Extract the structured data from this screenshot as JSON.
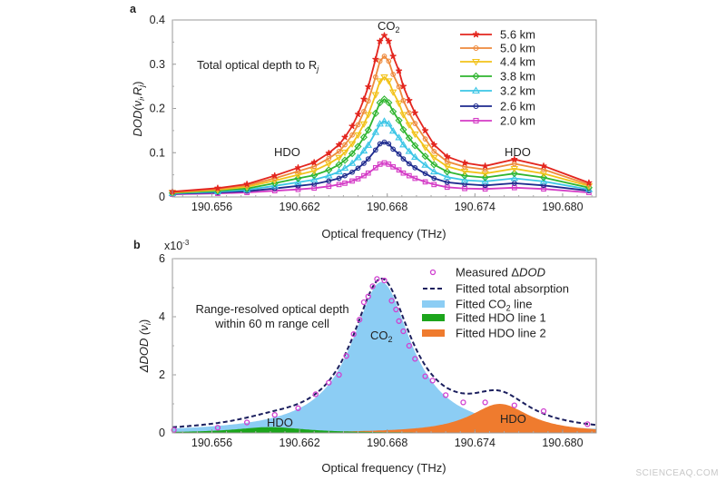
{
  "watermark": "SCIENCEAQ.COM",
  "chart_data": [
    {
      "panel": "a",
      "type": "line",
      "annotation": "Total optical depth to R",
      "annotation_sub": "j",
      "peak_labels": {
        "co2": "CO",
        "co2_sub": "2",
        "hdo_left": "HDO",
        "hdo_right": "HDO"
      },
      "xlabel": "Optical frequency (THz)",
      "ylabel": "DOD(ν",
      "ylabel_sub": "i",
      "ylabel_mid": ",R",
      "ylabel_sub2": "j",
      "ylabel_end": ")",
      "xlim": [
        190.6533,
        190.6823
      ],
      "ylim": [
        0,
        0.4
      ],
      "xticks": [
        "190.656",
        "190.662",
        "190.668",
        "190.674",
        "190.680"
      ],
      "yticks": [
        "0",
        "0.1",
        "0.2",
        "0.3",
        "0.4"
      ],
      "legend_position": "top-right",
      "grid": false,
      "x": [
        190.6533,
        190.6564,
        190.6584,
        190.6603,
        190.6619,
        190.663,
        190.664,
        190.6647,
        190.6651,
        190.6656,
        190.666,
        190.6664,
        190.6667,
        190.6672,
        190.6675,
        190.6678,
        190.6681,
        190.6684,
        190.6688,
        190.6691,
        190.6695,
        190.6699,
        190.6706,
        190.6712,
        190.6721,
        190.6733,
        190.6747,
        190.6767,
        190.6787,
        190.6818
      ],
      "series": [
        {
          "name": "5.6 km",
          "color": "#e3261f",
          "marker": "star",
          "values": [
            0.012,
            0.02,
            0.029,
            0.048,
            0.066,
            0.078,
            0.099,
            0.118,
            0.135,
            0.16,
            0.187,
            0.221,
            0.249,
            0.311,
            0.352,
            0.365,
            0.352,
            0.318,
            0.285,
            0.25,
            0.218,
            0.19,
            0.15,
            0.118,
            0.091,
            0.077,
            0.07,
            0.085,
            0.07,
            0.032
          ]
        },
        {
          "name": "5.0 km",
          "color": "#ee8a3c",
          "marker": "circle",
          "values": [
            0.011,
            0.018,
            0.026,
            0.042,
            0.058,
            0.069,
            0.087,
            0.103,
            0.118,
            0.14,
            0.163,
            0.193,
            0.217,
            0.271,
            0.307,
            0.318,
            0.307,
            0.277,
            0.249,
            0.218,
            0.19,
            0.166,
            0.131,
            0.103,
            0.08,
            0.068,
            0.062,
            0.075,
            0.062,
            0.028
          ]
        },
        {
          "name": "4.4 km",
          "color": "#f2c21a",
          "marker": "triangle-down",
          "values": [
            0.01,
            0.016,
            0.023,
            0.037,
            0.05,
            0.059,
            0.075,
            0.089,
            0.101,
            0.12,
            0.14,
            0.165,
            0.186,
            0.231,
            0.262,
            0.271,
            0.262,
            0.237,
            0.212,
            0.186,
            0.163,
            0.142,
            0.112,
            0.089,
            0.069,
            0.058,
            0.053,
            0.064,
            0.053,
            0.025
          ]
        },
        {
          "name": "3.8 km",
          "color": "#2fb52f",
          "marker": "diamond",
          "values": [
            0.009,
            0.014,
            0.019,
            0.031,
            0.042,
            0.049,
            0.061,
            0.073,
            0.083,
            0.098,
            0.114,
            0.135,
            0.151,
            0.189,
            0.213,
            0.221,
            0.213,
            0.193,
            0.173,
            0.152,
            0.133,
            0.116,
            0.092,
            0.073,
            0.057,
            0.048,
            0.044,
            0.053,
            0.044,
            0.021
          ]
        },
        {
          "name": "3.2 km",
          "color": "#3cc6e6",
          "marker": "triangle-up",
          "values": [
            0.008,
            0.012,
            0.016,
            0.025,
            0.033,
            0.039,
            0.048,
            0.057,
            0.065,
            0.076,
            0.089,
            0.104,
            0.117,
            0.146,
            0.165,
            0.171,
            0.165,
            0.149,
            0.134,
            0.118,
            0.103,
            0.09,
            0.072,
            0.057,
            0.045,
            0.038,
            0.035,
            0.042,
            0.035,
            0.017
          ]
        },
        {
          "name": "2.6 km",
          "color": "#1d2a8e",
          "marker": "circle",
          "values": [
            0.007,
            0.01,
            0.013,
            0.019,
            0.025,
            0.029,
            0.036,
            0.042,
            0.048,
            0.056,
            0.065,
            0.076,
            0.086,
            0.106,
            0.12,
            0.124,
            0.12,
            0.108,
            0.097,
            0.086,
            0.075,
            0.066,
            0.053,
            0.042,
            0.033,
            0.029,
            0.026,
            0.031,
            0.026,
            0.014
          ]
        },
        {
          "name": "2.0 km",
          "color": "#d43bc6",
          "marker": "square",
          "values": [
            0.006,
            0.008,
            0.01,
            0.014,
            0.017,
            0.02,
            0.024,
            0.028,
            0.031,
            0.036,
            0.041,
            0.048,
            0.054,
            0.066,
            0.074,
            0.077,
            0.074,
            0.068,
            0.061,
            0.054,
            0.048,
            0.042,
            0.034,
            0.028,
            0.022,
            0.019,
            0.018,
            0.021,
            0.018,
            0.01
          ]
        }
      ]
    },
    {
      "panel": "b",
      "type": "area",
      "annotation_line1": "Range-resolved optical depth",
      "annotation_line2": "within 60 m range cell",
      "peak_labels": {
        "co2": "CO",
        "co2_sub": "2",
        "hdo_left": "HDO",
        "hdo_right": "HDO"
      },
      "xlabel": "Optical frequency (THz)",
      "ylabel": "ΔDOD (ν",
      "ylabel_sub": "i",
      "ylabel_end": ")",
      "y_multiplier": "x10",
      "y_multiplier_exp": "-3",
      "xlim": [
        190.6533,
        190.6823
      ],
      "ylim": [
        0,
        6
      ],
      "xticks": [
        "190.656",
        "190.662",
        "190.668",
        "190.674",
        "190.680"
      ],
      "yticks": [
        "0",
        "2",
        "4",
        "6"
      ],
      "legend_position": "top-right",
      "grid": false,
      "measured": {
        "name": "Measured ΔDOD",
        "name_prefix": "Measured Δ",
        "name_italic": "DOD",
        "color": "#d040d0",
        "x": [
          190.6534,
          190.6564,
          190.6584,
          190.6603,
          190.6619,
          190.6631,
          190.664,
          190.6647,
          190.6652,
          190.6657,
          190.6661,
          190.6664,
          190.6667,
          190.667,
          190.6673,
          190.6678,
          190.6683,
          190.6686,
          190.6688,
          190.6691,
          190.6695,
          190.6699,
          190.6706,
          190.6711,
          190.672,
          190.6732,
          190.6747,
          190.6767,
          190.6787,
          190.6817
        ],
        "values": [
          0.1,
          0.18,
          0.36,
          0.62,
          0.85,
          1.33,
          1.73,
          2.0,
          2.65,
          3.4,
          3.9,
          4.5,
          4.7,
          5.05,
          5.3,
          5.25,
          4.55,
          4.25,
          3.85,
          3.5,
          3.0,
          2.55,
          1.95,
          1.8,
          1.3,
          1.05,
          1.05,
          0.95,
          0.75,
          0.3
        ]
      },
      "fits": [
        {
          "name": "Fitted total absorption",
          "color": "#1b1f5e",
          "style": "dashed"
        },
        {
          "name": "Fitted CO",
          "name_sub": "2",
          "name_end": " line",
          "color": "#8ccdf4",
          "center": 190.6676,
          "peak": 5.2,
          "hwhm": 0.00248
        },
        {
          "name": "Fitted HDO line 1",
          "color": "#1ca51c",
          "center": 190.66,
          "peak": 0.2,
          "hwhm": 0.003
        },
        {
          "name": "Fitted HDO line 2",
          "color": "#ef7b2e",
          "center": 190.6757,
          "peak": 1.0,
          "hwhm": 0.0025
        }
      ]
    }
  ]
}
